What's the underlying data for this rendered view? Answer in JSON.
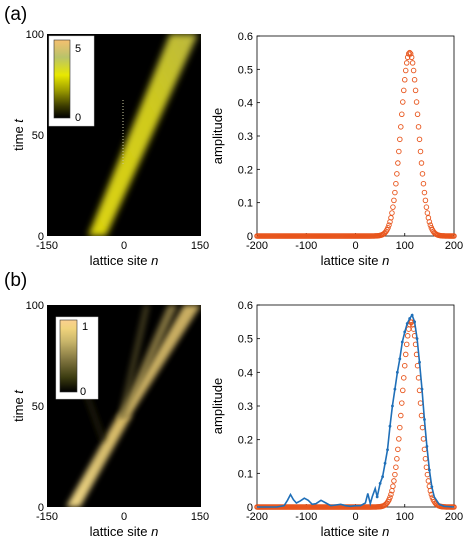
{
  "panels": [
    {
      "label": "(a)"
    },
    {
      "label": "(b)"
    }
  ],
  "colors": {
    "beam": "#f0e020",
    "gaussian": "#e8551c",
    "numeric": "#1f6fb8",
    "colorbar_a": [
      "#000000",
      "#3a3a00",
      "#9a9a00",
      "#e8e800",
      "#b9c36a",
      "#f5c070"
    ],
    "colorbar_b": [
      "#000000",
      "#3b3b10",
      "#827640",
      "#c8b56a",
      "#f0d37c",
      "#fbd090"
    ]
  },
  "chart_data": [
    {
      "type": "heatmap",
      "panel": "(a)",
      "xlabel": "lattice site n",
      "ylabel": "time t",
      "xlim": [
        -150,
        150
      ],
      "ylim": [
        0,
        100
      ],
      "xticks": [
        "-150",
        "0",
        "150"
      ],
      "yticks": [
        "0",
        "50",
        "100"
      ],
      "colorbar": {
        "range": [
          0,
          5.8
        ],
        "ticks": [
          "0",
          "5"
        ]
      },
      "beam": {
        "start_n": -80,
        "end_n": 110,
        "t_range": [
          0,
          100
        ]
      }
    },
    {
      "type": "scatter",
      "panel": "(a)",
      "xlabel": "lattice site n",
      "ylabel": "amplitude",
      "xlim": [
        -200,
        200
      ],
      "ylim": [
        0,
        0.6
      ],
      "xticks": [
        "-200",
        "-100",
        "0",
        "100",
        "200"
      ],
      "yticks": [
        "0",
        "0.1",
        "0.2",
        "0.3",
        "0.4",
        "0.5",
        "0.6"
      ],
      "series": [
        {
          "marker": "circle",
          "shape": "gaussian",
          "center": 110,
          "peak": 0.55,
          "width": 25,
          "n_range": [
            -200,
            200
          ]
        }
      ]
    },
    {
      "type": "heatmap",
      "panel": "(b)",
      "xlabel": "lattice site n",
      "ylabel": "time t",
      "xlim": [
        -150,
        150
      ],
      "ylim": [
        0,
        100
      ],
      "xticks": [
        "-150",
        "0",
        "150"
      ],
      "yticks": [
        "0",
        "50",
        "100"
      ],
      "colorbar": {
        "range": [
          0,
          1.1
        ],
        "ticks": [
          "0",
          "1"
        ]
      },
      "beam": {
        "start_n": -85,
        "split_t": 45,
        "branches_end_n": [
          60,
          110,
          150
        ]
      }
    },
    {
      "type": "scatter",
      "panel": "(b)",
      "xlabel": "lattice site n",
      "ylabel": "amplitude",
      "xlim": [
        -200,
        200
      ],
      "ylim": [
        0,
        0.6
      ],
      "xticks": [
        "-200",
        "-100",
        "0",
        "100",
        "200"
      ],
      "yticks": [
        "0",
        "0.1",
        "0.2",
        "0.3",
        "0.4",
        "0.5",
        "0.6"
      ],
      "series": [
        {
          "marker": "circle",
          "shape": "gaussian",
          "center": 113,
          "peak": 0.55,
          "width": 25,
          "n_range": [
            -200,
            200
          ]
        },
        {
          "marker": "line+points",
          "shape": "numerical",
          "points": [
            [
              -200,
              0
            ],
            [
              -160,
              0
            ],
            [
              -145,
              0.004
            ],
            [
              -138,
              0.02
            ],
            [
              -132,
              0.037
            ],
            [
              -126,
              0.022
            ],
            [
              -120,
              0.012
            ],
            [
              -112,
              0.018
            ],
            [
              -104,
              0.026
            ],
            [
              -96,
              0.02
            ],
            [
              -88,
              0.008
            ],
            [
              -80,
              0.01
            ],
            [
              -70,
              0.02
            ],
            [
              -60,
              0.012
            ],
            [
              -50,
              0.004
            ],
            [
              -40,
              0.006
            ],
            [
              -30,
              0.008
            ],
            [
              -20,
              0.004
            ],
            [
              -10,
              0.002
            ],
            [
              0,
              0.004
            ],
            [
              10,
              0.004
            ],
            [
              20,
              0.012
            ],
            [
              25,
              0.04
            ],
            [
              30,
              0.01
            ],
            [
              34,
              0.03
            ],
            [
              40,
              0.055
            ],
            [
              44,
              0.03
            ],
            [
              50,
              0.07
            ],
            [
              55,
              0.09
            ],
            [
              60,
              0.13
            ],
            [
              65,
              0.17
            ],
            [
              70,
              0.24
            ],
            [
              75,
              0.3
            ],
            [
              80,
              0.35
            ],
            [
              85,
              0.4
            ],
            [
              90,
              0.44
            ],
            [
              95,
              0.49
            ],
            [
              100,
              0.52
            ],
            [
              105,
              0.545
            ],
            [
              110,
              0.56
            ],
            [
              115,
              0.57
            ],
            [
              120,
              0.55
            ],
            [
              125,
              0.5
            ],
            [
              130,
              0.43
            ],
            [
              135,
              0.35
            ],
            [
              140,
              0.26
            ],
            [
              145,
              0.18
            ],
            [
              150,
              0.11
            ],
            [
              155,
              0.06
            ],
            [
              160,
              0.03
            ],
            [
              170,
              0.008
            ],
            [
              180,
              0.002
            ],
            [
              200,
              0
            ]
          ]
        }
      ]
    }
  ]
}
